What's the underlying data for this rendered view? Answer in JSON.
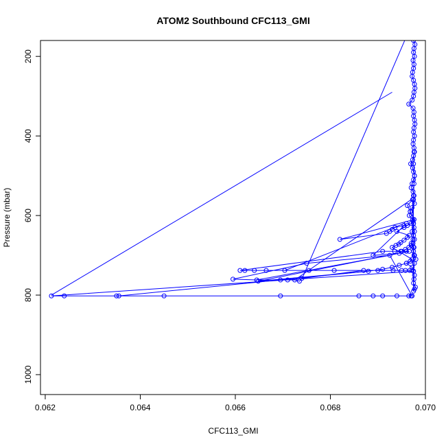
{
  "chart_data": {
    "type": "scatter",
    "title": "ATOM2 Southbound CFC113_GMI",
    "xlabel": "CFC113_GMI",
    "ylabel": "Pressure (mbar)",
    "xlim": [
      0.0619,
      0.07
    ],
    "ylim": [
      1050,
      160
    ],
    "y_reversed": true,
    "x_ticks": [
      0.062,
      0.064,
      0.066,
      0.068,
      0.07
    ],
    "x_tick_labels": [
      "0.062",
      "0.064",
      "0.066",
      "0.068",
      "0.070"
    ],
    "y_ticks": [
      200,
      400,
      600,
      800,
      1000
    ],
    "y_tick_labels": [
      "200",
      "400",
      "600",
      "800",
      "1000"
    ],
    "series": [
      {
        "color": "#0000ff",
        "marker": "open-circle",
        "line": true,
        "x": [
          0.06975,
          0.06978,
          0.06976,
          0.06975,
          0.06977,
          0.06974,
          0.06976,
          0.06975,
          0.06973,
          0.06972,
          0.06975,
          0.06977,
          0.06978,
          0.06976,
          0.06975,
          0.06972,
          0.06965,
          0.06974,
          0.06976,
          0.06975,
          0.06977,
          0.06978,
          0.06976,
          0.06975,
          0.06977,
          0.06975,
          0.06974,
          0.06976,
          0.06977,
          0.06975,
          0.06973,
          0.06969,
          0.06973,
          0.06975,
          0.06977,
          0.06975,
          0.06972,
          0.0697,
          0.06974,
          0.06976,
          0.06975,
          0.06977,
          0.06972,
          0.06968,
          0.06966,
          0.06973,
          0.06975,
          0.06976,
          0.06977,
          0.06975,
          0.06974,
          0.0697,
          0.06976,
          0.06975,
          0.06977,
          0.0698,
          0.0696,
          0.06972,
          0.06975,
          0.06977,
          0.06976,
          0.06975,
          0.06979,
          0.06977,
          0.06975,
          0.06973,
          0.06962,
          0.06968,
          0.06976,
          0.06975,
          0.06972,
          0.06977,
          0.06975,
          0.06976,
          0.06977,
          0.06975,
          0.06213,
          0.0624,
          0.0635,
          0.06355,
          0.0645,
          0.06695,
          0.0686,
          0.0689,
          0.0691,
          0.0694,
          0.06965,
          0.0697,
          0.06972,
          0.06925,
          0.0675,
          0.06595,
          0.06645,
          0.06695,
          0.0671,
          0.06725,
          0.06735,
          0.0674,
          0.0687,
          0.069,
          0.06932,
          0.0695,
          0.06958,
          0.06967,
          0.06972,
          0.06808,
          0.06755,
          0.06704,
          0.06665,
          0.0664,
          0.0662,
          0.0661,
          0.0691,
          0.06935,
          0.06948,
          0.0696,
          0.06966,
          0.06648,
          0.0688,
          0.0691,
          0.0693,
          0.06945,
          0.0696,
          0.06968,
          0.06972,
          0.0693,
          0.06938,
          0.06944,
          0.06948,
          0.06955,
          0.06962,
          0.06966,
          0.0694,
          0.06955,
          0.06962,
          0.0697,
          0.06974,
          0.06976,
          0.0682,
          0.06918,
          0.06925,
          0.0693,
          0.06936,
          0.06955,
          0.0696,
          0.0689,
          0.06945,
          0.0695,
          0.06958,
          0.06965,
          0.0697,
          0.06974,
          0.06975,
          0.06976,
          0.06977,
          0.06975,
          0.06976
        ],
        "y": [
          160,
          170,
          180,
          190,
          200,
          210,
          220,
          230,
          240,
          250,
          260,
          270,
          280,
          290,
          300,
          310,
          320,
          330,
          340,
          350,
          360,
          370,
          380,
          390,
          400,
          410,
          420,
          430,
          440,
          450,
          460,
          470,
          480,
          490,
          500,
          510,
          520,
          530,
          540,
          550,
          560,
          570,
          580,
          590,
          600,
          610,
          620,
          630,
          640,
          650,
          660,
          670,
          680,
          690,
          700,
          710,
          720,
          730,
          740,
          750,
          760,
          770,
          780,
          785,
          790,
          560,
          575,
          590,
          610,
          620,
          640,
          660,
          680,
          700,
          720,
          740,
          802,
          802,
          802,
          802,
          802,
          802,
          802,
          802,
          802,
          802,
          802,
          802,
          802,
          700,
          720,
          760,
          762,
          762,
          762,
          762,
          765,
          758,
          738,
          738,
          738,
          738,
          738,
          738,
          738,
          738,
          738,
          738,
          738,
          738,
          738,
          738,
          690,
          690,
          690,
          690,
          690,
          765,
          740,
          735,
          730,
          725,
          720,
          715,
          710,
          680,
          675,
          672,
          668,
          662,
          655,
          650,
          640,
          630,
          625,
          620,
          615,
          610,
          660,
          645,
          640,
          635,
          630,
          625,
          620,
          700,
          695,
          690,
          685,
          680,
          675,
          670,
          550,
          520,
          500,
          470,
          440
        ]
      }
    ],
    "extra_segments": [
      {
        "x": [
          0.0693,
          0.06213
        ],
        "y": [
          290,
          800
        ]
      },
      {
        "x": [
          0.0696,
          0.0674
        ],
        "y": [
          150,
          760
        ]
      },
      {
        "x": [
          0.06355,
          0.0688
        ],
        "y": [
          802,
          740
        ]
      },
      {
        "x": [
          0.06645,
          0.06925
        ],
        "y": [
          762,
          700
        ]
      },
      {
        "x": [
          0.06704,
          0.06955
        ],
        "y": [
          738,
          620
        ]
      },
      {
        "x": [
          0.06725,
          0.0697
        ],
        "y": [
          762,
          560
        ]
      }
    ],
    "grid": false,
    "legend": "none"
  }
}
